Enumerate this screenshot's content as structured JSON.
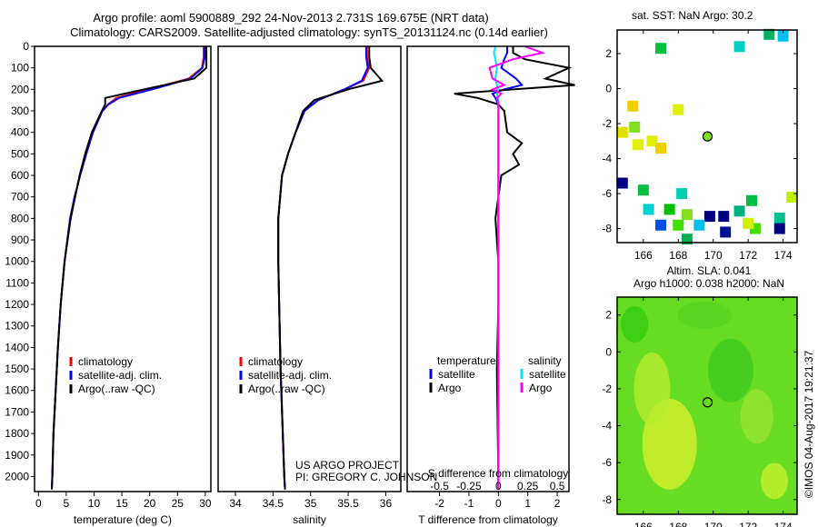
{
  "title_line1": "Argo profile: aoml 5900889_292 24-Nov-2013 2.731S 169.675E (NRT data)",
  "title_line2": "Climatology: CARS2009. Satellite-adjusted climatology: synTS_20131124.nc (0.14d earlier)",
  "credit": "US ARGO PROJECT",
  "pi": "PI: GREGORY C. JOHNSON",
  "imos_stamp": "©IMOS 04-Aug-2017 19:21:37",
  "colors": {
    "climatology": "#ff0000",
    "satellite": "#0000ff",
    "argo": "#000000",
    "sal_satellite": "#00e5ee",
    "sal_argo": "#ff00ff"
  },
  "chart_data": [
    {
      "type": "line",
      "name": "temperature",
      "xlabel": "temperature (deg C)",
      "ylabel": "",
      "xlim": [
        -0.7,
        31
      ],
      "ylim": [
        2070,
        0
      ],
      "xticks": [
        0,
        5,
        10,
        15,
        20,
        25,
        30
      ],
      "yticks": [
        0,
        100,
        200,
        300,
        400,
        500,
        600,
        700,
        800,
        900,
        1000,
        1100,
        1200,
        1300,
        1400,
        1500,
        1600,
        1700,
        1800,
        1900,
        2000
      ],
      "legend": [
        "climatology",
        "satellite-adj. clim.",
        "Argo(..raw -QC)"
      ],
      "depth": [
        0,
        50,
        100,
        150,
        200,
        240,
        270,
        300,
        400,
        500,
        600,
        700,
        800,
        1000,
        1200,
        1400,
        1600,
        1800,
        2000,
        2060
      ],
      "series": [
        {
          "name": "climatology",
          "color": "#ff0000",
          "values": [
            29.7,
            29.7,
            29.4,
            27,
            20,
            14,
            12.5,
            11.5,
            9.8,
            8.6,
            7.5,
            6.5,
            5.7,
            4.7,
            4,
            3.5,
            3.1,
            2.7,
            2.5,
            2.4
          ]
        },
        {
          "name": "satellite-adj. clim.",
          "color": "#0000ff",
          "values": [
            29.9,
            29.9,
            29.5,
            27.3,
            20.5,
            14.5,
            12.6,
            11.5,
            9.8,
            8.6,
            7.5,
            6.5,
            5.7,
            4.7,
            4,
            3.5,
            3.1,
            2.7,
            2.5,
            2.4
          ]
        },
        {
          "name": "Argo(..raw -QC)",
          "color": "#000000",
          "values": [
            30.2,
            30.2,
            30.2,
            28,
            19,
            12,
            12,
            11.4,
            9.6,
            8.4,
            7.4,
            6.6,
            5.8,
            4.7,
            4,
            3.5,
            3.1,
            2.7,
            2.5,
            2.4
          ]
        }
      ]
    },
    {
      "type": "line",
      "name": "salinity",
      "xlabel": "salinity",
      "ylabel": "",
      "xlim": [
        33.77,
        36.2
      ],
      "ylim": [
        2070,
        0
      ],
      "xticks": [
        34,
        34.5,
        35,
        35.5,
        36
      ],
      "legend": [
        "climatology",
        "satellite-adj. clim.",
        "Argo(..raw -QC)"
      ],
      "depth": [
        0,
        50,
        100,
        160,
        200,
        250,
        300,
        400,
        500,
        600,
        800,
        1000,
        1500,
        2000,
        2060
      ],
      "series": [
        {
          "name": "climatology",
          "color": "#ff0000",
          "values": [
            35.75,
            35.75,
            35.78,
            35.7,
            35.45,
            35.1,
            34.92,
            34.8,
            34.7,
            34.62,
            34.57,
            34.57,
            34.6,
            34.65,
            34.66
          ]
        },
        {
          "name": "satellite-adj. clim.",
          "color": "#0000ff",
          "values": [
            35.74,
            35.74,
            35.76,
            35.68,
            35.45,
            35.1,
            34.92,
            34.8,
            34.7,
            34.62,
            34.57,
            34.57,
            34.6,
            34.65,
            34.66
          ]
        },
        {
          "name": "Argo(..raw -QC)",
          "color": "#000000",
          "values": [
            35.78,
            35.78,
            35.8,
            35.95,
            35.5,
            35.05,
            34.9,
            34.8,
            34.7,
            34.62,
            34.57,
            34.57,
            34.6,
            34.65,
            34.66
          ]
        }
      ]
    },
    {
      "type": "line",
      "name": "difference",
      "xlabel": "T difference from climatology",
      "x2label": "S difference from climatology",
      "xlim": [
        -3.1,
        2.4
      ],
      "ylim": [
        2070,
        0
      ],
      "xticks": [
        -2,
        -1,
        0,
        1,
        2
      ],
      "x2ticks": [
        -0.5,
        -0.25,
        0,
        0.25,
        0.5
      ],
      "legend_titles": [
        "temperature",
        "salinity"
      ],
      "legend": [
        "satellite",
        "Argo",
        "satellite",
        "Argo"
      ],
      "depth": [
        0,
        30,
        60,
        100,
        150,
        180,
        200,
        220,
        240,
        270,
        300,
        400,
        450,
        500,
        550,
        600,
        800,
        1000,
        1200,
        1500,
        2000,
        2060
      ],
      "series": [
        {
          "name": "T satellite",
          "color": "#0000ff",
          "values": [
            0.3,
            0.3,
            0.2,
            0.1,
            0.6,
            0.8,
            0.2,
            -0.2,
            -0.1,
            0,
            0,
            0,
            0,
            0,
            0,
            0,
            0,
            0,
            0,
            0,
            0,
            0
          ]
        },
        {
          "name": "T Argo",
          "color": "#000000",
          "values": [
            0.5,
            0.5,
            0.9,
            2.4,
            1.6,
            2.6,
            0.5,
            -1.5,
            -0.7,
            0,
            0.2,
            0.3,
            0.8,
            0.5,
            0.7,
            0.1,
            -0.1,
            0,
            0,
            -0.05,
            0,
            0
          ]
        },
        {
          "name": "S satellite",
          "color": "#00e5ee",
          "values": [
            -0.1,
            -0.15,
            -0.1,
            -0.05,
            -0.1,
            -0.05,
            0,
            -0.05,
            0,
            0,
            0,
            0,
            0,
            0,
            0,
            0,
            0,
            0,
            0,
            0,
            0,
            0
          ]
        },
        {
          "name": "S Argo",
          "color": "#ff00ff",
          "values": [
            0.9,
            1.5,
            0.5,
            -0.3,
            -0.2,
            0.2,
            -0.2,
            0.1,
            -0.05,
            0,
            0,
            0,
            0,
            0,
            0,
            0,
            0,
            0,
            0,
            0,
            0,
            0
          ]
        }
      ]
    },
    {
      "type": "scatter",
      "name": "sst-map",
      "title": "sat. SST: NaN Argo: 30.2",
      "xlim": [
        164.5,
        174.8
      ],
      "ylim": [
        -8.8,
        3.35
      ],
      "xticks": [
        166,
        168,
        170,
        172,
        174
      ],
      "yticks": [
        2,
        0,
        -2,
        -4,
        -6,
        -8
      ],
      "argo_position": [
        169.675,
        -2.731
      ],
      "cells": [
        [
          167,
          2.3,
          "#00c040"
        ],
        [
          171.5,
          2.4,
          "#00d0c0"
        ],
        [
          174,
          3,
          "#00c0f0"
        ],
        [
          173.2,
          3.1,
          "#00b060"
        ],
        [
          165.4,
          -1,
          "#f0d000"
        ],
        [
          168,
          -1.2,
          "#e0f000"
        ],
        [
          165.5,
          -2.2,
          "#80e020"
        ],
        [
          164.8,
          -2.5,
          "#e0e000"
        ],
        [
          165.7,
          -3.2,
          "#e0f000"
        ],
        [
          166.5,
          -3,
          "#e0f000"
        ],
        [
          167,
          -3.4,
          "#f0d000"
        ],
        [
          164.8,
          -5.4,
          "#000080"
        ],
        [
          166,
          -5.8,
          "#00c040"
        ],
        [
          168.2,
          -6,
          "#00d0b0"
        ],
        [
          172.2,
          -6.4,
          "#00c040"
        ],
        [
          174.5,
          -6.2,
          "#c0f000"
        ],
        [
          166.3,
          -6.9,
          "#00d0d0"
        ],
        [
          167.5,
          -6.9,
          "#00c000"
        ],
        [
          168.5,
          -7.2,
          "#80e020"
        ],
        [
          169.8,
          -7.3,
          "#000080"
        ],
        [
          170.6,
          -7.3,
          "#000080"
        ],
        [
          171.5,
          -7,
          "#00b080"
        ],
        [
          173.8,
          -7.4,
          "#00c090"
        ],
        [
          169.2,
          -7.8,
          "#00c0f0"
        ],
        [
          168,
          -7.8,
          "#40e000"
        ],
        [
          170.7,
          -8.2,
          "#001090"
        ],
        [
          172.4,
          -8,
          "#40e000"
        ],
        [
          173.8,
          -8,
          "#000080"
        ],
        [
          167,
          -7.8,
          "#0050e0"
        ],
        [
          168.5,
          -8.6,
          "#00b050"
        ],
        [
          172,
          -7.7,
          "#d0f000"
        ]
      ]
    },
    {
      "type": "heatmap",
      "name": "sla-map",
      "title_line1": "Altim. SLA: 0.041",
      "title_line2": "Argo h1000: 0.038 h2000: NaN",
      "xlim": [
        164.5,
        174.8
      ],
      "ylim": [
        -8.8,
        2.97
      ],
      "xticks": [
        166,
        168,
        170,
        172,
        174
      ],
      "yticks": [
        2,
        0,
        -2,
        -4,
        -6,
        -8
      ],
      "argo_position": [
        169.675,
        -2.731
      ]
    }
  ]
}
